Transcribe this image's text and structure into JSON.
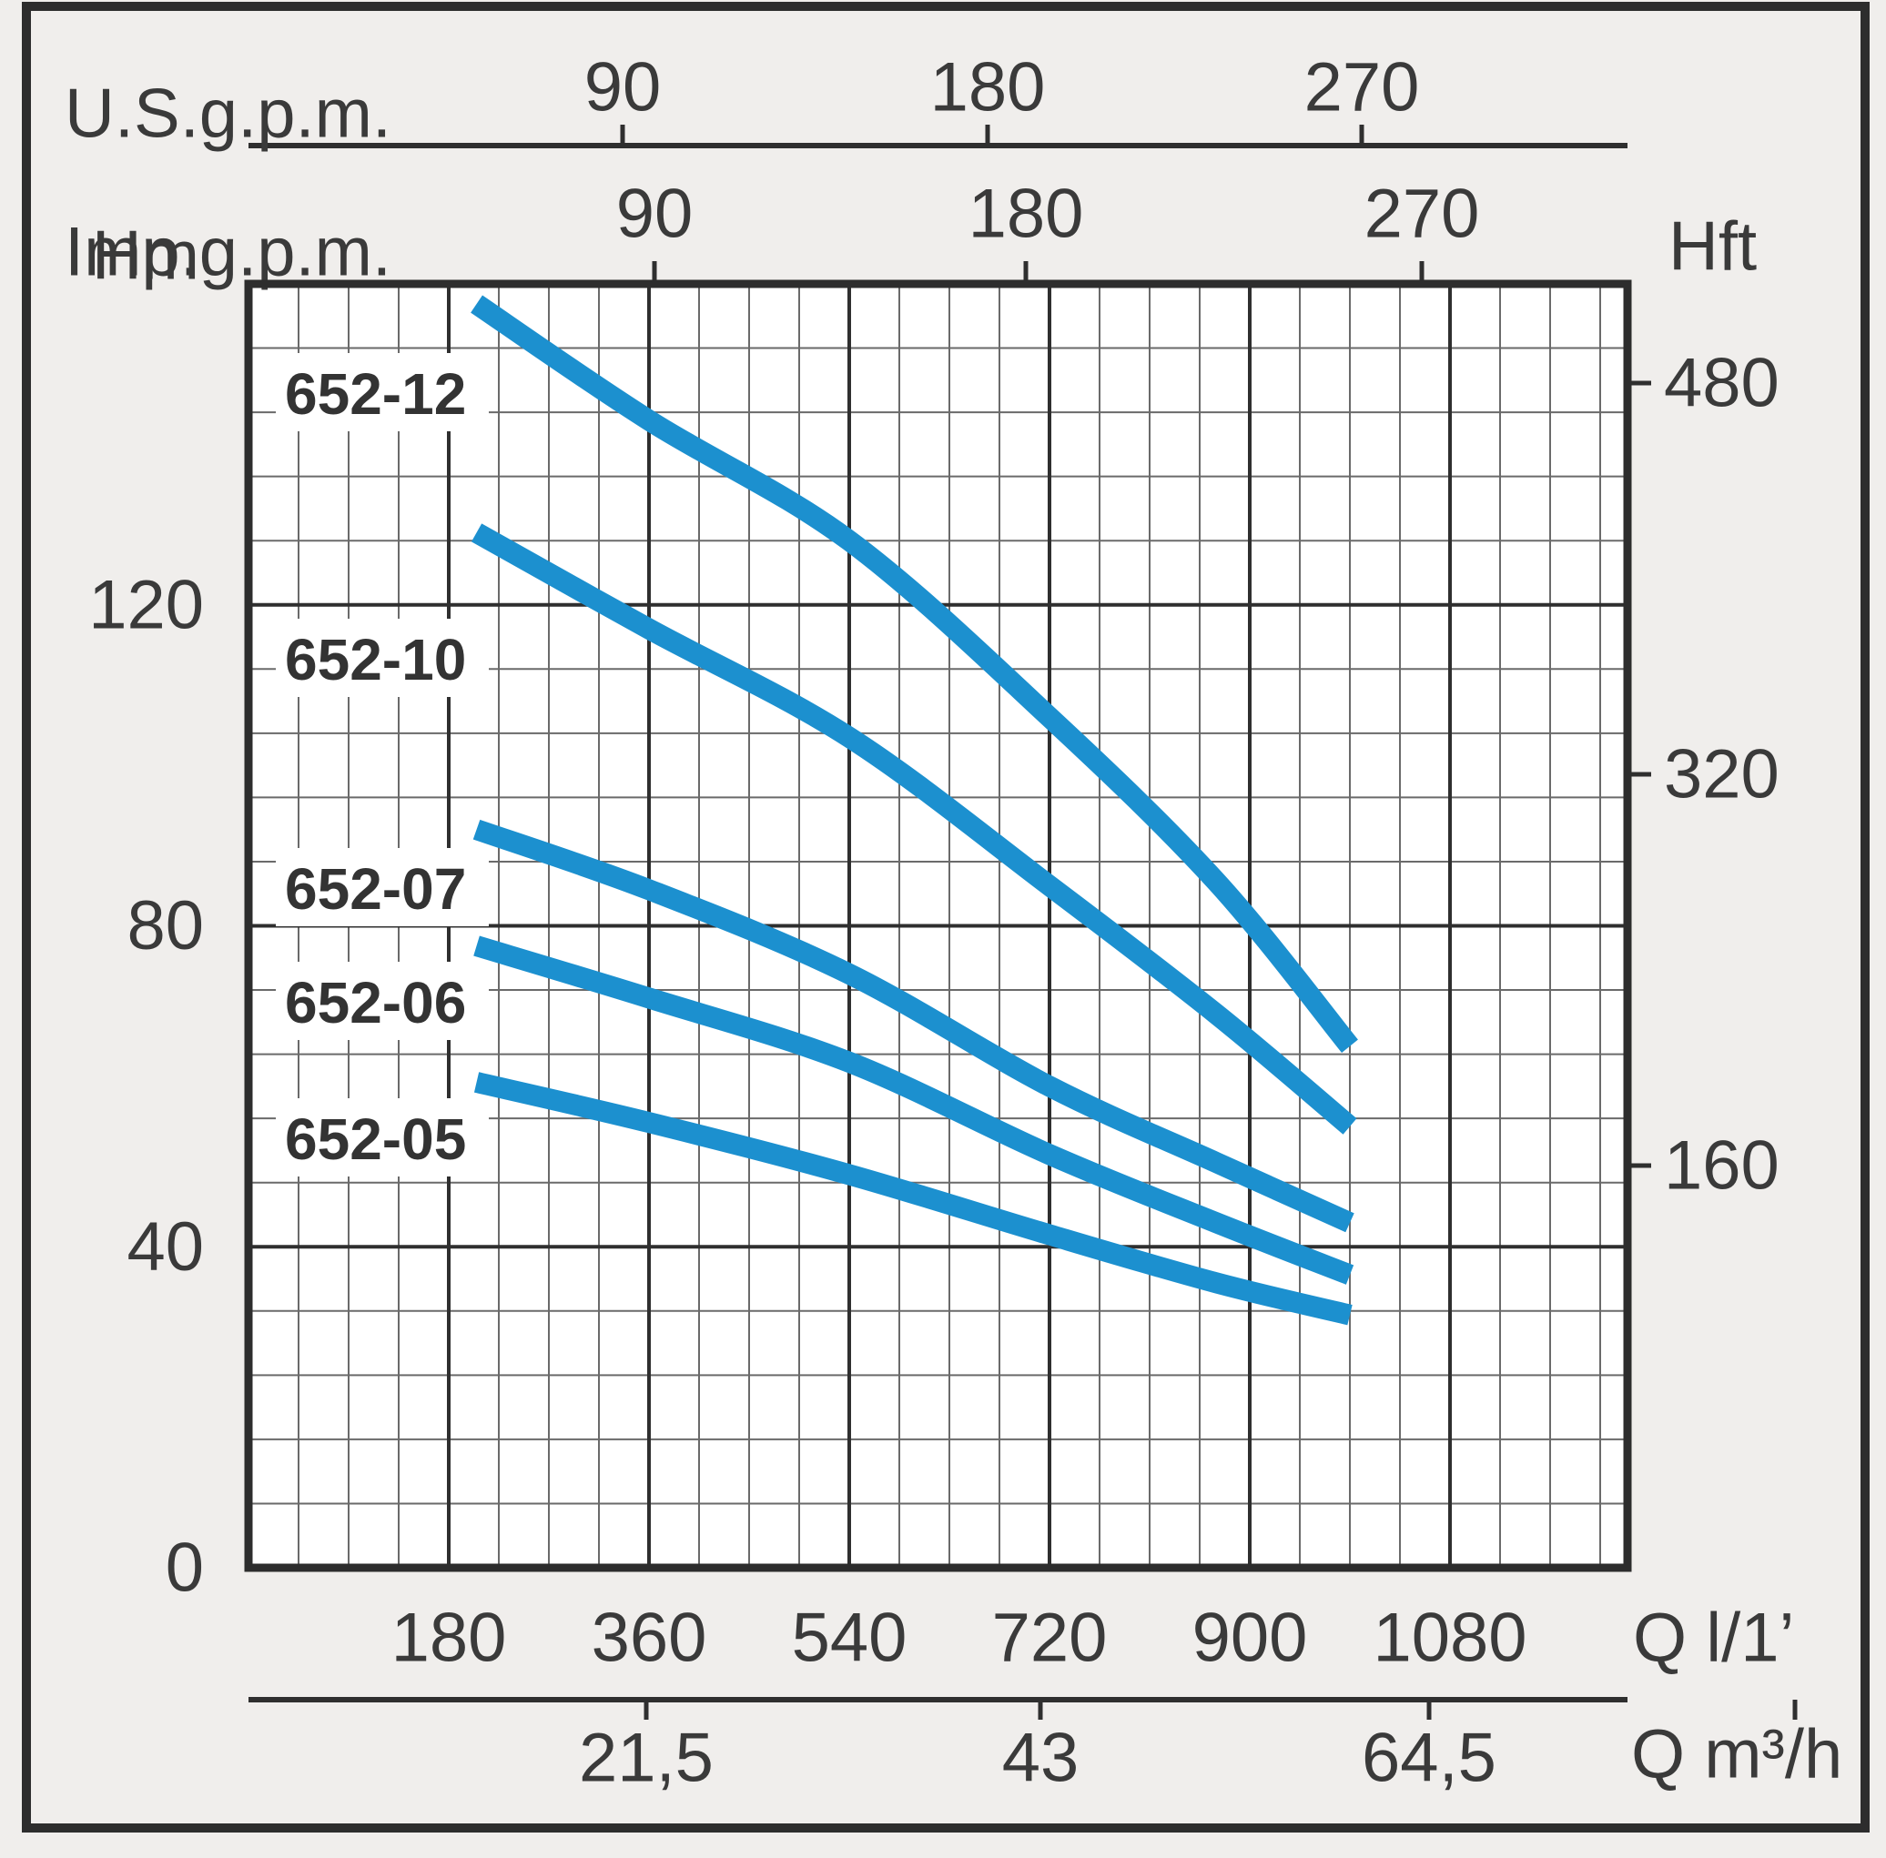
{
  "chart_data": {
    "type": "line",
    "x_axes": {
      "l_min": {
        "label": "Q l/1’",
        "ticks": [
          180,
          360,
          540,
          720,
          900,
          1080
        ]
      },
      "us_gpm": {
        "label": "U.S.g.p.m.",
        "ticks": [
          90,
          180,
          270
        ]
      },
      "imp_gpm": {
        "label": "Imp.g.p.m.",
        "ticks": [
          90,
          180,
          270
        ]
      },
      "m3_h": {
        "label": "Q m³/h",
        "ticks": [
          "21,5",
          "43",
          "64,5"
        ]
      }
    },
    "y_axes": {
      "meters": {
        "label": "Hm",
        "ticks": [
          0,
          40,
          80,
          120
        ],
        "range": [
          0,
          160
        ]
      },
      "feet": {
        "label": "Hft",
        "ticks": [
          160,
          320,
          480
        ]
      }
    },
    "grid": {
      "x_minor_step_l_min": 45,
      "x_major_step_l_min": 180,
      "y_minor_step_m": 8,
      "y_major_step_m": 40
    },
    "series": [
      {
        "name": "652-12",
        "points_q_vs_h": [
          [
            205,
            157.5
          ],
          [
            360,
            143
          ],
          [
            540,
            128
          ],
          [
            720,
            106
          ],
          [
            870,
            85.5
          ],
          [
            990,
            65
          ]
        ]
      },
      {
        "name": "652-10",
        "points_q_vs_h": [
          [
            205,
            129
          ],
          [
            360,
            117
          ],
          [
            540,
            103.5
          ],
          [
            720,
            85
          ],
          [
            870,
            69
          ],
          [
            990,
            55
          ]
        ]
      },
      {
        "name": "652-07",
        "points_q_vs_h": [
          [
            205,
            92
          ],
          [
            360,
            84.5
          ],
          [
            540,
            74
          ],
          [
            720,
            60
          ],
          [
            870,
            50.5
          ],
          [
            990,
            43
          ]
        ]
      },
      {
        "name": "652-06",
        "points_q_vs_h": [
          [
            205,
            77.5
          ],
          [
            360,
            71
          ],
          [
            540,
            63
          ],
          [
            720,
            51.5
          ],
          [
            870,
            43
          ],
          [
            990,
            36.5
          ]
        ]
      },
      {
        "name": "652-05",
        "points_q_vs_h": [
          [
            205,
            60.5
          ],
          [
            360,
            55.5
          ],
          [
            540,
            49
          ],
          [
            720,
            41.5
          ],
          [
            870,
            35.5
          ],
          [
            990,
            31.5
          ]
        ]
      }
    ],
    "colors": {
      "curve": "#1c90cf",
      "grid_major": "#2f2f2f",
      "grid_minor": "#6a6a6a",
      "frame": "#2d2d2d",
      "text": "#3a3a3a",
      "curve_label_text": "#333333",
      "plot_background": "#ffffff",
      "page_background": "#f0eeec"
    }
  }
}
